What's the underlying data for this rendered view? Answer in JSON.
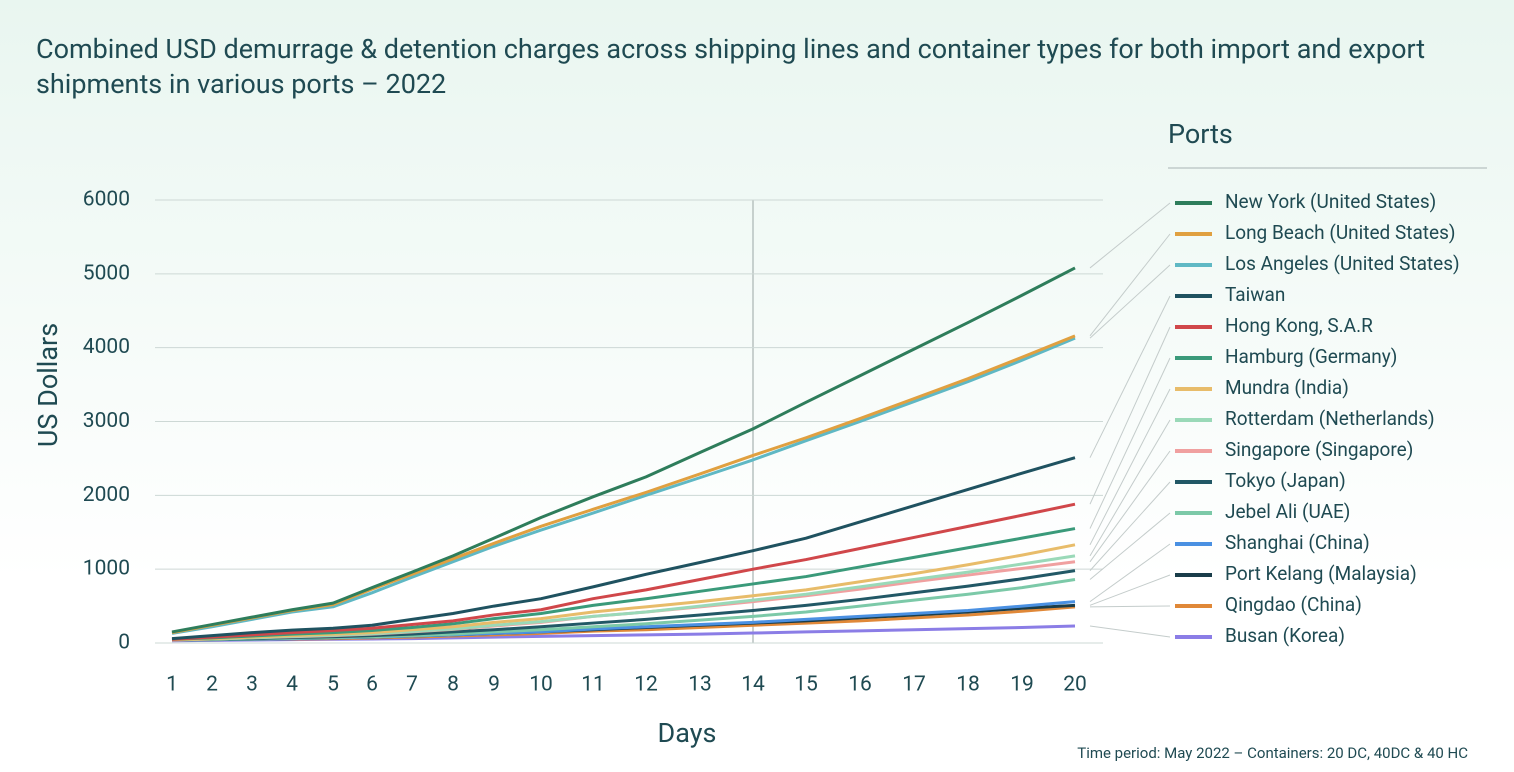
{
  "chart_data": {
    "type": "line",
    "title": "Combined USD demurrage & detention charges across shipping lines and container types for both import and export shipments in various ports – 2022",
    "y_label": "US Dollars",
    "x_label": "Days",
    "legend_title": "Ports",
    "footnote": "Time period: May 2022 – Containers: 20 DC, 40DC & 40 HC",
    "legend_position": "right",
    "grid": true,
    "categories": [
      1,
      2,
      3,
      4,
      5,
      6,
      7,
      8,
      9,
      10,
      11,
      12,
      13,
      14,
      15,
      16,
      17,
      18,
      19,
      20
    ],
    "ylim": [
      0,
      6000
    ],
    "yticks": [
      0,
      1000,
      2000,
      3000,
      4000,
      5000,
      6000
    ],
    "series": [
      {
        "name": "New York (United States)",
        "color": "#2e7d5b",
        "values": [
          150,
          250,
          350,
          450,
          540,
          750,
          960,
          1180,
          1420,
          1700,
          1980,
          2250,
          2580,
          2900,
          3260,
          3620,
          3980,
          4340,
          4710,
          5080
        ]
      },
      {
        "name": "Long Beach (United States)",
        "color": "#e0a040",
        "values": [
          140,
          240,
          340,
          440,
          520,
          730,
          930,
          1140,
          1350,
          1580,
          1810,
          2040,
          2290,
          2540,
          2780,
          3040,
          3310,
          3580,
          3870,
          4160
        ]
      },
      {
        "name": "Los Angeles (United States)",
        "color": "#5fb8c4",
        "values": [
          130,
          220,
          320,
          420,
          490,
          680,
          890,
          1100,
          1310,
          1530,
          1760,
          2000,
          2240,
          2480,
          2740,
          3000,
          3270,
          3540,
          3830,
          4130
        ]
      },
      {
        "name": "Taiwan",
        "color": "#1f5260",
        "values": [
          60,
          100,
          140,
          175,
          200,
          240,
          320,
          400,
          500,
          600,
          760,
          930,
          1090,
          1250,
          1420,
          1640,
          1860,
          2080,
          2300,
          2510
        ]
      },
      {
        "name": "Hong Kong, S.A.R",
        "color": "#d0474a",
        "values": [
          50,
          80,
          110,
          140,
          170,
          200,
          250,
          300,
          380,
          450,
          600,
          720,
          860,
          1000,
          1130,
          1280,
          1430,
          1580,
          1730,
          1880
        ]
      },
      {
        "name": "Hamburg (Germany)",
        "color": "#3a9a7a",
        "values": [
          50,
          70,
          95,
          120,
          140,
          170,
          210,
          260,
          330,
          400,
          510,
          600,
          700,
          800,
          900,
          1030,
          1160,
          1290,
          1420,
          1550
        ]
      },
      {
        "name": "Mundra (India)",
        "color": "#e8bc6a",
        "values": [
          40,
          60,
          80,
          100,
          120,
          140,
          180,
          220,
          280,
          330,
          420,
          490,
          560,
          640,
          720,
          830,
          940,
          1060,
          1190,
          1330
        ]
      },
      {
        "name": "Rotterdam (Netherlands)",
        "color": "#9ad9b8",
        "values": [
          40,
          55,
          70,
          90,
          105,
          125,
          155,
          190,
          240,
          290,
          360,
          420,
          500,
          580,
          660,
          760,
          860,
          960,
          1070,
          1180
        ]
      },
      {
        "name": "Singapore (Singapore)",
        "color": "#f0a0a0",
        "values": [
          40,
          55,
          70,
          85,
          100,
          120,
          150,
          185,
          230,
          280,
          360,
          420,
          490,
          560,
          640,
          730,
          830,
          920,
          1010,
          1100
        ]
      },
      {
        "name": "Tokyo (Japan)",
        "color": "#225866",
        "values": [
          40,
          50,
          60,
          75,
          85,
          100,
          120,
          150,
          180,
          220,
          270,
          320,
          380,
          440,
          510,
          590,
          680,
          770,
          870,
          980
        ]
      },
      {
        "name": "Jebel Ali (UAE)",
        "color": "#7cc9a8",
        "values": [
          40,
          45,
          55,
          65,
          75,
          85,
          100,
          120,
          150,
          180,
          220,
          260,
          310,
          360,
          420,
          500,
          580,
          660,
          750,
          860
        ]
      },
      {
        "name": "Shanghai (China)",
        "color": "#4a90e2",
        "values": [
          40,
          45,
          50,
          60,
          70,
          80,
          95,
          110,
          130,
          150,
          190,
          220,
          250,
          280,
          320,
          360,
          400,
          440,
          500,
          560
        ]
      },
      {
        "name": "Port Kelang (Malaysia)",
        "color": "#1a3d4a",
        "values": [
          40,
          45,
          50,
          60,
          70,
          80,
          95,
          110,
          130,
          150,
          180,
          210,
          240,
          270,
          300,
          340,
          380,
          420,
          470,
          510
        ]
      },
      {
        "name": "Qingdao (China)",
        "color": "#e08838",
        "values": [
          40,
          45,
          50,
          55,
          60,
          70,
          80,
          95,
          110,
          130,
          160,
          180,
          210,
          240,
          270,
          300,
          340,
          380,
          430,
          490
        ]
      },
      {
        "name": "Busan (Korea)",
        "color": "#8b7de6",
        "values": [
          30,
          35,
          40,
          45,
          50,
          55,
          60,
          70,
          80,
          90,
          100,
          110,
          120,
          135,
          150,
          165,
          180,
          195,
          210,
          230
        ]
      }
    ]
  }
}
